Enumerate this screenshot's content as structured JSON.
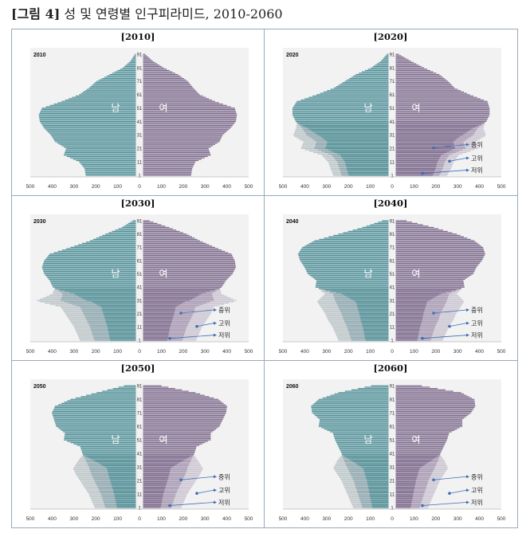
{
  "figure": {
    "title_prefix": "[그림 4]",
    "title_text": " 성 및 연령별 인구피라미드, 2010-2060"
  },
  "colors": {
    "male": "#4e8f97",
    "male_light": "#b9c3c6",
    "male_mid": "#8ba6ad",
    "female": "#7d6a8c",
    "female_light": "#c8c2cf",
    "female_mid": "#a596b1",
    "panel_bg": "#f2f2f2",
    "arrow": "#3d6fb5"
  },
  "chart_data": [
    {
      "type": "bar",
      "subtype": "population-pyramid",
      "title": "[2010]",
      "year_label": "2010",
      "center_left": "남",
      "center_right": "여",
      "x_ticks": [
        "500",
        "400",
        "300",
        "200",
        "100",
        "0",
        "100",
        "200",
        "300",
        "400",
        "500"
      ],
      "y_ticks": [
        "1",
        "11",
        "21",
        "31",
        "41",
        "51",
        "61",
        "71",
        "81",
        "91"
      ],
      "xlim": [
        -500,
        500
      ],
      "ages": [
        1,
        6,
        11,
        16,
        21,
        26,
        31,
        36,
        41,
        46,
        51,
        56,
        61,
        66,
        71,
        76,
        81,
        86,
        91
      ],
      "male": [
        230,
        235,
        260,
        330,
        320,
        370,
        390,
        420,
        440,
        445,
        430,
        340,
        260,
        215,
        180,
        120,
        60,
        25,
        5
      ],
      "female": [
        220,
        225,
        240,
        310,
        300,
        350,
        365,
        400,
        425,
        430,
        420,
        330,
        260,
        230,
        205,
        160,
        95,
        45,
        10
      ],
      "variants": []
    },
    {
      "type": "bar",
      "subtype": "population-pyramid",
      "title": "[2020]",
      "year_label": "2020",
      "center_left": "남",
      "center_right": "여",
      "x_ticks": [
        "500",
        "400",
        "300",
        "200",
        "100",
        "0",
        "100",
        "200",
        "300",
        "400",
        "500"
      ],
      "y_ticks": [
        "1",
        "11",
        "21",
        "31",
        "41",
        "51",
        "61",
        "71",
        "81",
        "91"
      ],
      "xlim": [
        -500,
        500
      ],
      "ages": [
        1,
        6,
        11,
        16,
        21,
        26,
        31,
        36,
        41,
        46,
        51,
        56,
        61,
        66,
        71,
        76,
        81,
        86,
        91
      ],
      "male": [
        215,
        225,
        235,
        260,
        340,
        330,
        375,
        395,
        425,
        440,
        440,
        420,
        330,
        250,
        200,
        150,
        80,
        35,
        8
      ],
      "female": [
        200,
        215,
        225,
        245,
        320,
        310,
        355,
        375,
        415,
        430,
        430,
        420,
        340,
        270,
        240,
        200,
        130,
        70,
        15
      ],
      "male_high": [
        250,
        245
      ],
      "female_high": [
        255,
        250
      ],
      "variants": [
        "중위",
        "고위",
        "저위"
      ]
    },
    {
      "type": "bar",
      "subtype": "population-pyramid",
      "title": "[2030]",
      "year_label": "2030",
      "center_left": "남",
      "center_right": "여",
      "x_ticks": [
        "500",
        "400",
        "300",
        "200",
        "100",
        "0",
        "100",
        "200",
        "300",
        "400",
        "500"
      ],
      "y_ticks": [
        "1",
        "11",
        "21",
        "31",
        "41",
        "51",
        "61",
        "71",
        "81",
        "91"
      ],
      "xlim": [
        -500,
        500
      ],
      "ages": [
        1,
        6,
        11,
        16,
        21,
        26,
        31,
        36,
        41,
        46,
        51,
        56,
        61,
        66,
        71,
        76,
        81,
        86,
        91
      ],
      "male": [
        190,
        200,
        210,
        225,
        240,
        255,
        345,
        335,
        380,
        395,
        420,
        430,
        420,
        395,
        300,
        210,
        140,
        65,
        15
      ],
      "female": [
        180,
        190,
        200,
        215,
        230,
        240,
        325,
        315,
        360,
        380,
        410,
        425,
        420,
        405,
        330,
        260,
        200,
        120,
        30
      ],
      "variants": [
        "중위",
        "고위",
        "저위"
      ]
    },
    {
      "type": "bar",
      "subtype": "population-pyramid",
      "title": "[2040]",
      "year_label": "2040",
      "center_left": "남",
      "center_right": "여",
      "x_ticks": [
        "500",
        "400",
        "300",
        "200",
        "100",
        "0",
        "100",
        "200",
        "300",
        "400",
        "500"
      ],
      "y_ticks": [
        "1",
        "11",
        "21",
        "31",
        "41",
        "51",
        "61",
        "71",
        "81",
        "91"
      ],
      "xlim": [
        -500,
        500
      ],
      "ages": [
        1,
        6,
        11,
        16,
        21,
        26,
        31,
        36,
        41,
        46,
        51,
        56,
        61,
        66,
        71,
        76,
        81,
        86,
        91
      ],
      "male": [
        170,
        180,
        190,
        205,
        215,
        230,
        245,
        255,
        335,
        330,
        370,
        385,
        405,
        415,
        395,
        340,
        230,
        120,
        30
      ],
      "female": [
        160,
        170,
        180,
        195,
        205,
        220,
        235,
        245,
        315,
        310,
        355,
        370,
        395,
        410,
        400,
        360,
        280,
        175,
        50
      ],
      "variants": [
        "중위",
        "고위",
        "저위"
      ]
    },
    {
      "type": "bar",
      "subtype": "population-pyramid",
      "title": "[2050]",
      "year_label": "2050",
      "center_left": "남",
      "center_right": "여",
      "x_ticks": [
        "500",
        "400",
        "300",
        "200",
        "100",
        "0",
        "100",
        "200",
        "300",
        "400",
        "500"
      ],
      "y_ticks": [
        "1",
        "11",
        "21",
        "31",
        "41",
        "51",
        "61",
        "71",
        "81",
        "91"
      ],
      "xlim": [
        -500,
        500
      ],
      "ages": [
        1,
        6,
        11,
        16,
        21,
        26,
        31,
        36,
        41,
        46,
        51,
        56,
        61,
        66,
        71,
        76,
        81,
        86,
        91
      ],
      "male": [
        140,
        150,
        160,
        175,
        190,
        205,
        215,
        230,
        245,
        255,
        330,
        325,
        365,
        375,
        385,
        370,
        300,
        180,
        55
      ],
      "female": [
        130,
        140,
        150,
        165,
        180,
        195,
        205,
        220,
        235,
        245,
        310,
        310,
        350,
        365,
        380,
        385,
        345,
        240,
        85
      ],
      "variants": [
        "중위",
        "고위",
        "저위"
      ]
    },
    {
      "type": "bar",
      "subtype": "population-pyramid",
      "title": "[2060]",
      "year_label": "2060",
      "center_left": "남",
      "center_right": "여",
      "x_ticks": [
        "500",
        "400",
        "300",
        "200",
        "100",
        "0",
        "100",
        "200",
        "300",
        "400",
        "500"
      ],
      "y_ticks": [
        "1",
        "11",
        "21",
        "31",
        "41",
        "51",
        "61",
        "71",
        "81",
        "91"
      ],
      "xlim": [
        -500,
        500
      ],
      "ages": [
        1,
        6,
        11,
        16,
        21,
        26,
        31,
        36,
        41,
        46,
        51,
        56,
        61,
        66,
        71,
        76,
        81,
        86,
        91
      ],
      "male": [
        120,
        130,
        140,
        150,
        160,
        175,
        190,
        205,
        215,
        230,
        245,
        255,
        320,
        315,
        350,
        355,
        320,
        230,
        80
      ],
      "female": [
        110,
        120,
        130,
        140,
        150,
        165,
        180,
        195,
        205,
        220,
        235,
        245,
        305,
        305,
        345,
        365,
        360,
        300,
        120
      ],
      "variants": [
        "중위",
        "고위",
        "저위"
      ]
    }
  ]
}
